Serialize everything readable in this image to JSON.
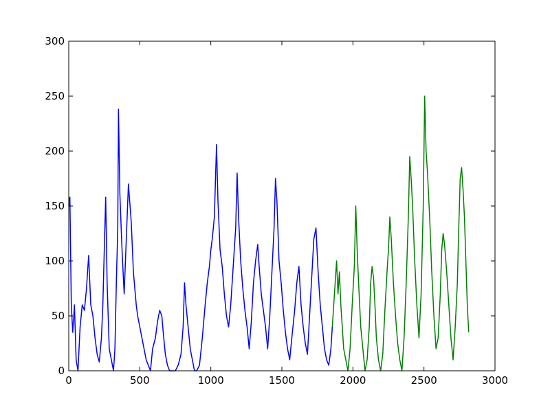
{
  "chart_data": {
    "type": "line",
    "title": "",
    "xlabel": "",
    "ylabel": "",
    "xlim": [
      0,
      3000
    ],
    "ylim": [
      0,
      300
    ],
    "grid": false,
    "x_ticks": [
      0,
      500,
      1000,
      1500,
      2000,
      2500,
      3000
    ],
    "y_ticks": [
      0,
      50,
      100,
      150,
      200,
      250,
      300
    ],
    "x_tick_labels": [
      "0",
      "500",
      "1000",
      "1500",
      "2000",
      "2500",
      "3000"
    ],
    "y_tick_labels": [
      "0",
      "50",
      "100",
      "150",
      "200",
      "250",
      "300"
    ],
    "series": [
      {
        "color": "#0000ff",
        "x": [
          0,
          8,
          18,
          28,
          40,
          52,
          65,
          80,
          95,
          110,
          125,
          140,
          155,
          170,
          185,
          200,
          215,
          230,
          240,
          250,
          260,
          270,
          285,
          300,
          315,
          325,
          335,
          345,
          350,
          360,
          375,
          390,
          405,
          420,
          440,
          455,
          465,
          475,
          485,
          500,
          515,
          530,
          545,
          560,
          575,
          590,
          610,
          625,
          640,
          655,
          665,
          680,
          695,
          710,
          730,
          750,
          770,
          790,
          805,
          815,
          825,
          840,
          855,
          870,
          885,
          900,
          920,
          940,
          960,
          975,
          990,
          1000,
          1010,
          1025,
          1040,
          1050,
          1065,
          1080,
          1095,
          1110,
          1125,
          1140,
          1160,
          1175,
          1185,
          1195,
          1210,
          1225,
          1240,
          1255,
          1270,
          1285,
          1300,
          1315,
          1330,
          1340,
          1355,
          1370,
          1385,
          1400,
          1415,
          1430,
          1445,
          1455,
          1465,
          1480,
          1495,
          1510,
          1525,
          1540,
          1555,
          1570,
          1590,
          1605,
          1620,
          1635,
          1650,
          1665,
          1680,
          1695,
          1710,
          1725,
          1740,
          1755,
          1770,
          1785,
          1800,
          1815,
          1830,
          1845,
          1855
        ],
        "y": [
          150,
          158,
          60,
          35,
          60,
          10,
          0,
          40,
          60,
          55,
          75,
          105,
          60,
          50,
          30,
          15,
          8,
          30,
          60,
          110,
          158,
          80,
          20,
          10,
          0,
          20,
          80,
          130,
          238,
          160,
          110,
          70,
          120,
          170,
          135,
          90,
          75,
          60,
          50,
          40,
          30,
          20,
          10,
          5,
          0,
          20,
          30,
          45,
          55,
          50,
          35,
          15,
          5,
          0,
          0,
          0,
          5,
          15,
          40,
          80,
          60,
          40,
          20,
          10,
          0,
          0,
          5,
          30,
          60,
          80,
          95,
          110,
          120,
          140,
          206,
          155,
          110,
          95,
          70,
          50,
          40,
          60,
          100,
          130,
          180,
          140,
          100,
          75,
          55,
          40,
          20,
          45,
          80,
          100,
          115,
          95,
          70,
          55,
          40,
          20,
          50,
          90,
          130,
          175,
          155,
          100,
          80,
          55,
          35,
          20,
          10,
          30,
          55,
          80,
          95,
          60,
          40,
          25,
          15,
          50,
          85,
          120,
          130,
          90,
          60,
          40,
          20,
          10,
          5,
          20,
          40
        ]
      },
      {
        "color": "#008000",
        "x": [
          1855,
          1865,
          1875,
          1885,
          1895,
          1905,
          1915,
          1925,
          1935,
          1950,
          1965,
          1980,
          1995,
          2010,
          2020,
          2030,
          2040,
          2055,
          2070,
          2085,
          2100,
          2115,
          2125,
          2135,
          2145,
          2155,
          2165,
          2180,
          2195,
          2210,
          2225,
          2240,
          2250,
          2260,
          2270,
          2285,
          2300,
          2315,
          2330,
          2345,
          2360,
          2375,
          2390,
          2400,
          2410,
          2420,
          2435,
          2450,
          2465,
          2480,
          2495,
          2505,
          2515,
          2525,
          2540,
          2555,
          2570,
          2585,
          2600,
          2615,
          2625,
          2635,
          2645,
          2660,
          2675,
          2690,
          2705,
          2720,
          2735,
          2745,
          2755,
          2765,
          2775,
          2785,
          2795,
          2805,
          2815
        ],
        "y": [
          40,
          60,
          80,
          100,
          70,
          90,
          60,
          40,
          20,
          10,
          0,
          20,
          60,
          95,
          150,
          110,
          80,
          40,
          20,
          0,
          10,
          40,
          80,
          95,
          85,
          60,
          30,
          10,
          0,
          15,
          55,
          90,
          110,
          140,
          120,
          80,
          50,
          25,
          10,
          0,
          30,
          80,
          140,
          195,
          175,
          150,
          100,
          60,
          30,
          70,
          150,
          250,
          200,
          180,
          140,
          90,
          50,
          20,
          30,
          70,
          110,
          125,
          115,
          90,
          60,
          30,
          10,
          40,
          80,
          130,
          175,
          185,
          165,
          140,
          100,
          60,
          35
        ]
      }
    ]
  }
}
